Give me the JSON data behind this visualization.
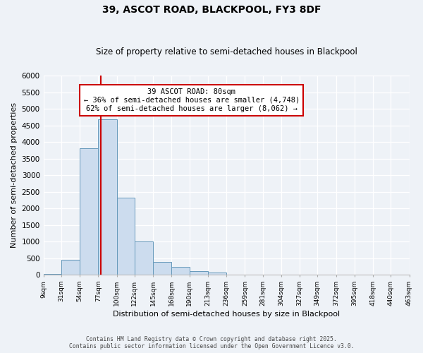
{
  "title": "39, ASCOT ROAD, BLACKPOOL, FY3 8DF",
  "subtitle": "Size of property relative to semi-detached houses in Blackpool",
  "xlabel": "Distribution of semi-detached houses by size in Blackpool",
  "ylabel": "Number of semi-detached properties",
  "bin_edges": [
    9,
    31,
    54,
    77,
    100,
    122,
    145,
    168,
    190,
    213,
    236,
    259,
    281,
    304,
    327,
    349,
    372,
    395,
    418,
    440,
    463
  ],
  "bin_labels": [
    "9sqm",
    "31sqm",
    "54sqm",
    "77sqm",
    "100sqm",
    "122sqm",
    "145sqm",
    "168sqm",
    "190sqm",
    "213sqm",
    "236sqm",
    "259sqm",
    "281sqm",
    "304sqm",
    "327sqm",
    "349sqm",
    "372sqm",
    "395sqm",
    "418sqm",
    "440sqm",
    "463sqm"
  ],
  "counts": [
    30,
    450,
    3820,
    4680,
    2320,
    1000,
    390,
    235,
    100,
    65,
    10,
    0,
    0,
    0,
    0,
    0,
    0,
    0,
    0,
    0
  ],
  "bar_color": "#ccdcee",
  "bar_edge_color": "#6699bb",
  "vline_x": 80,
  "vline_color": "#cc0000",
  "ylim": [
    0,
    6000
  ],
  "yticks": [
    0,
    500,
    1000,
    1500,
    2000,
    2500,
    3000,
    3500,
    4000,
    4500,
    5000,
    5500,
    6000
  ],
  "annotation_title": "39 ASCOT ROAD: 80sqm",
  "annotation_line1": "← 36% of semi-detached houses are smaller (4,748)",
  "annotation_line2": "62% of semi-detached houses are larger (8,062) →",
  "annotation_box_color": "#ffffff",
  "annotation_box_edge_color": "#cc0000",
  "footer_line1": "Contains HM Land Registry data © Crown copyright and database right 2025.",
  "footer_line2": "Contains public sector information licensed under the Open Government Licence v3.0.",
  "bg_color": "#eef2f7",
  "grid_color": "#ffffff",
  "title_fontsize": 10,
  "subtitle_fontsize": 8.5
}
